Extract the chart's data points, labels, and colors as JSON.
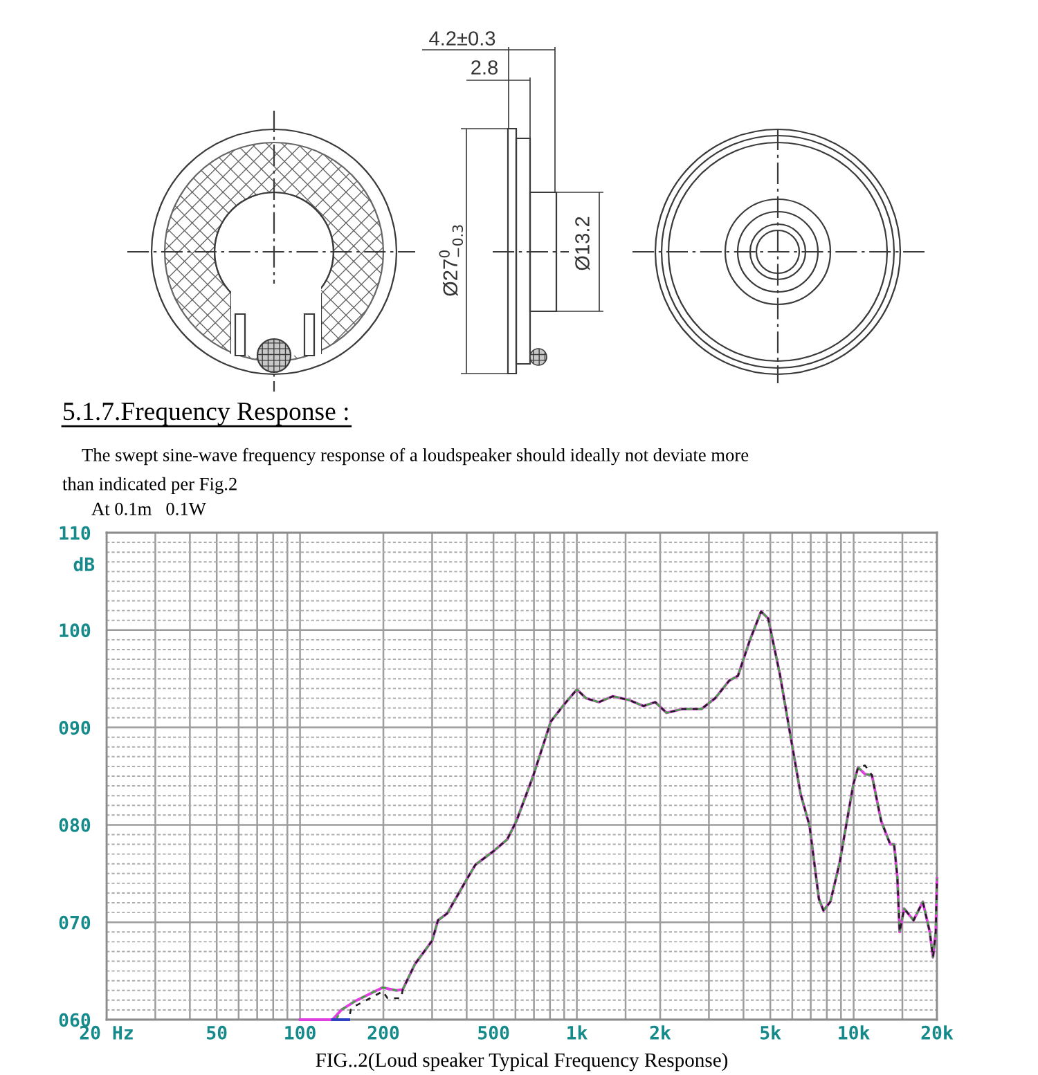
{
  "chart_data": {
    "type": "line",
    "title": "5.1.7.Frequency Response :",
    "subtitle": "The swept sine-wave frequency response of a loudspeaker should ideally not deviate more\nthan indicated per Fig.2",
    "annotations": [
      "4.2±0.3",
      "2.8",
      "Ø27$^{0}$$_{−0.3}$",
      "Ø13.2",
      "At 0.1m   0.1W"
    ],
    "xlabel": "FIG..2(Loud speaker Typical Frequency Response)",
    "ylabel": "dB",
    "log": "x",
    "grid": true,
    "xlim": [
      20,
      20000
    ],
    "ylim": [
      60,
      110
    ],
    "xticks": [
      {
        "value": 20,
        "label": "20 Hz"
      },
      {
        "value": 30,
        "label": null
      },
      {
        "value": 40,
        "label": null
      },
      50,
      {
        "value": 60,
        "label": null
      },
      {
        "value": 70,
        "label": null
      },
      {
        "value": 80,
        "label": null
      },
      {
        "value": 90,
        "label": null
      },
      100,
      200,
      {
        "value": 300,
        "label": null
      },
      {
        "value": 400,
        "label": null
      },
      500,
      {
        "value": 600,
        "label": null
      },
      {
        "value": 700,
        "label": null
      },
      {
        "value": 800,
        "label": null
      },
      {
        "value": 900,
        "label": null
      },
      {
        "value": 1000,
        "label": "1k"
      },
      {
        "value": 1500,
        "label": null
      },
      {
        "value": 2000,
        "label": "2k"
      },
      {
        "value": 3000,
        "label": null
      },
      {
        "value": 4000,
        "label": null
      },
      {
        "value": 5000,
        "label": "5k"
      },
      {
        "value": 6000,
        "label": null
      },
      {
        "value": 7000,
        "label": null
      },
      {
        "value": 8000,
        "label": null
      },
      {
        "value": 9000,
        "label": null
      },
      {
        "value": 10000,
        "label": "10k"
      },
      {
        "value": 15000,
        "label": null
      },
      {
        "value": 20000,
        "label": "20k"
      }
    ],
    "yticks": [
      {
        "value": 60,
        "label": "060"
      },
      {
        "value": 61,
        "label": null
      },
      {
        "value": 62,
        "label": null
      },
      {
        "value": 63,
        "label": null
      },
      {
        "value": 64,
        "label": null
      },
      {
        "value": 65,
        "label": null
      },
      {
        "value": 66,
        "label": null
      },
      {
        "value": 67,
        "label": null
      },
      {
        "value": 68,
        "label": null
      },
      {
        "value": 69,
        "label": null
      },
      {
        "value": 70,
        "label": "070"
      },
      {
        "value": 71,
        "label": null
      },
      {
        "value": 72,
        "label": null
      },
      {
        "value": 73,
        "label": null
      },
      {
        "value": 74,
        "label": null
      },
      {
        "value": 75,
        "label": null
      },
      {
        "value": 76,
        "label": null
      },
      {
        "value": 77,
        "label": null
      },
      {
        "value": 78,
        "label": null
      },
      {
        "value": 79,
        "label": null
      },
      {
        "value": 80,
        "label": "080"
      },
      {
        "value": 81,
        "label": null
      },
      {
        "value": 82,
        "label": null
      },
      {
        "value": 83,
        "label": null
      },
      {
        "value": 84,
        "label": null
      },
      {
        "value": 85,
        "label": null
      },
      {
        "value": 86,
        "label": null
      },
      {
        "value": 87,
        "label": null
      },
      {
        "value": 88,
        "label": null
      },
      {
        "value": 89,
        "label": null
      },
      {
        "value": 90,
        "label": "090"
      },
      {
        "value": 91,
        "label": null
      },
      {
        "value": 92,
        "label": null
      },
      {
        "value": 93,
        "label": null
      },
      {
        "value": 94,
        "label": null
      },
      {
        "value": 95,
        "label": null
      },
      {
        "value": 96,
        "label": null
      },
      {
        "value": 97,
        "label": null
      },
      {
        "value": 98,
        "label": null
      },
      {
        "value": 99,
        "label": null
      },
      100,
      {
        "value": 101,
        "label": null
      },
      {
        "value": 102,
        "label": null
      },
      {
        "value": 103,
        "label": null
      },
      {
        "value": 104,
        "label": null
      },
      {
        "value": 105,
        "label": null
      },
      {
        "value": 106,
        "label": null
      },
      {
        "value": 107,
        "label": null
      },
      {
        "value": 108,
        "label": null
      },
      {
        "value": 109,
        "label": null
      },
      110
    ],
    "series": [
      {
        "color": "#e040e0",
        "line_style": "solid",
        "x": [
          100,
          131,
          141,
          158,
          177,
          199,
          223,
          235,
          260,
          300,
          315,
          340,
          400,
          430,
          500,
          560,
          605,
          695,
          805,
          890,
          1000,
          1080,
          1200,
          1350,
          1550,
          1740,
          1920,
          2110,
          2410,
          2820,
          3160,
          3550,
          3820,
          4210,
          4630,
          4910,
          5410,
          5850,
          6430,
          6930,
          7490,
          7780,
          8240,
          8900,
          9980,
          10380,
          10990,
          11640,
          12570,
          13560,
          14000,
          14380,
          14660,
          15220,
          16460,
          17780,
          18840,
          19350,
          19800,
          20000
        ],
        "values": [
          60,
          60,
          61.0,
          61.9,
          62.6,
          63.3,
          63.0,
          63.1,
          65.7,
          68.1,
          70.2,
          70.9,
          74.4,
          75.9,
          77.3,
          78.5,
          80.4,
          85.0,
          90.6,
          92.2,
          93.9,
          93.0,
          92.6,
          93.2,
          92.8,
          92.2,
          92.6,
          91.5,
          91.9,
          91.9,
          93.0,
          94.8,
          95.3,
          98.9,
          101.9,
          101.2,
          95.5,
          89.9,
          83.2,
          79.9,
          72.4,
          71.2,
          72.1,
          76.1,
          84.2,
          85.9,
          85.2,
          85.1,
          80.4,
          78.0,
          78.0,
          74.7,
          69.0,
          71.4,
          70.2,
          72.1,
          69.0,
          66.4,
          69.0,
          74.5
        ]
      },
      {
        "color": "#3aa83a",
        "line_style": "dashed",
        "x": [
          135,
          141,
          158,
          177,
          199,
          223,
          235,
          260,
          300,
          315,
          340,
          400,
          430,
          500,
          560,
          605,
          695,
          805,
          890,
          1000,
          1080,
          1200,
          1350,
          1550,
          1740,
          1920,
          2110,
          2410,
          2820,
          3160,
          3550,
          3820,
          4210,
          4630,
          4910,
          5410,
          5850,
          6430,
          6930,
          7490,
          7780,
          8240,
          8900,
          9980,
          10380,
          10990,
          11640,
          12570,
          13560,
          14000,
          14380,
          14660,
          15220,
          16460,
          17780,
          18840,
          19350,
          19800,
          20000
        ],
        "values": [
          60,
          61.0,
          61.9,
          62.6,
          63.3,
          63.0,
          63.1,
          65.7,
          68.1,
          70.2,
          70.9,
          74.4,
          75.9,
          77.3,
          78.5,
          80.4,
          85.0,
          90.6,
          92.2,
          93.9,
          93.0,
          92.6,
          93.2,
          92.8,
          92.2,
          92.6,
          91.5,
          91.9,
          91.9,
          93.0,
          94.8,
          95.3,
          98.9,
          101.9,
          101.2,
          95.5,
          89.9,
          83.2,
          79.9,
          72.4,
          71.2,
          72.1,
          76.1,
          84.2,
          85.9,
          85.2,
          85.1,
          80.4,
          78.0,
          78.0,
          74.7,
          69.0,
          71.4,
          70.2,
          72.1,
          69.0,
          66.4,
          69.0,
          74.5
        ]
      },
      {
        "color": "#202020",
        "line_style": "dashed",
        "x": [
          150,
          153,
          171,
          199,
          207,
          232,
          235,
          260,
          300,
          315,
          340,
          400,
          430,
          500,
          560,
          605,
          695,
          805,
          890,
          1000,
          1080,
          1200,
          1350,
          1550,
          1740,
          1920,
          2110,
          2410,
          2820,
          3160,
          3550,
          3820,
          4210,
          4630,
          4910,
          5410,
          5850,
          6430,
          6930,
          7490,
          7780,
          8240,
          8900,
          9980,
          10380,
          10990,
          11640,
          12570,
          13560,
          14000,
          14380,
          14660,
          15220,
          16460,
          17780,
          18840,
          19350,
          19800,
          20000
        ],
        "values": [
          60,
          61.2,
          61.9,
          62.9,
          62.2,
          62.2,
          63.1,
          65.7,
          68.1,
          70.2,
          70.9,
          74.4,
          75.9,
          77.3,
          78.5,
          80.4,
          85.0,
          90.6,
          92.2,
          93.9,
          93.0,
          92.6,
          93.2,
          92.8,
          92.2,
          92.6,
          91.5,
          91.9,
          91.9,
          93.0,
          94.8,
          95.3,
          98.9,
          101.9,
          101.2,
          95.5,
          89.9,
          83.2,
          79.9,
          72.4,
          71.2,
          72.1,
          76.1,
          84.2,
          85.9,
          86.1,
          85.1,
          80.4,
          78.0,
          78.0,
          74.7,
          69.0,
          71.4,
          70.2,
          72.1,
          69.0,
          66.4,
          69.0,
          74.5
        ]
      },
      {
        "color": "#2a40c0",
        "line_style": "solid",
        "x": [
          131,
          150
        ],
        "values": [
          60,
          60
        ]
      }
    ]
  }
}
